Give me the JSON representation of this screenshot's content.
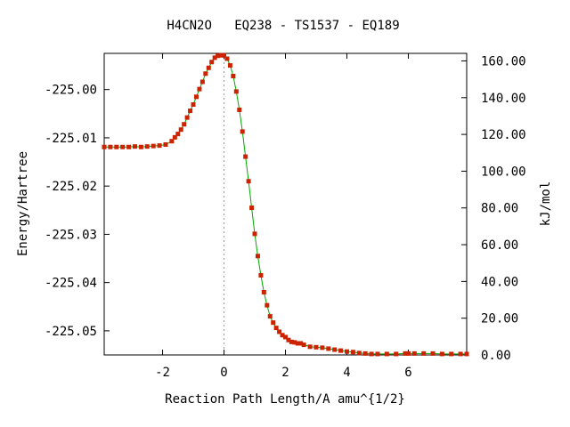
{
  "chart_data": {
    "type": "scatter",
    "title": "H4CN2O   EQ238 - TS1537 - EQ189",
    "xlabel": "Reaction Path Length/A amu^{1/2}",
    "ylabel": "Energy/Hartree",
    "y2label": "kJ/mol",
    "xlim": [
      -3.9,
      7.9
    ],
    "ylim": [
      -225.055,
      -224.9925
    ],
    "y2lim": [
      0,
      164.1
    ],
    "x_ticks": [
      -2,
      0,
      2,
      4,
      6
    ],
    "x_tick_labels": [
      "-2",
      "0",
      "2",
      "4",
      "6"
    ],
    "y_ticks": [
      -225.0,
      -225.01,
      -225.02,
      -225.03,
      -225.04,
      -225.05
    ],
    "y_tick_labels": [
      "-225.00",
      "-225.01",
      "-225.02",
      "-225.03",
      "-225.04",
      "-225.05"
    ],
    "y2_ticks": [
      0,
      20,
      40,
      60,
      80,
      100,
      120,
      140,
      160
    ],
    "y2_tick_labels": [
      "0.00",
      "20.00",
      "40.00",
      "60.00",
      "80.00",
      "100.00",
      "120.00",
      "140.00",
      "160.00"
    ],
    "ts_x": 0,
    "colors": {
      "marker": "#cc2200",
      "line": "#00aa00",
      "ts_line": "#999999"
    },
    "series": [
      {
        "x": [
          -3.9,
          -3.7,
          -3.5,
          -3.3,
          -3.1,
          -2.9,
          -2.7,
          -2.5,
          -2.3,
          -2.1,
          -1.9,
          -1.7,
          -1.6,
          -1.5,
          -1.4,
          -1.3,
          -1.2,
          -1.1,
          -1.0,
          -0.9,
          -0.8,
          -0.7,
          -0.6,
          -0.5,
          -0.4,
          -0.3,
          -0.2,
          -0.1,
          0.0,
          0.1,
          0.2,
          0.3,
          0.4,
          0.5,
          0.6,
          0.7,
          0.8,
          0.9,
          1.0,
          1.1,
          1.2,
          1.3,
          1.4,
          1.5,
          1.6,
          1.7,
          1.8,
          1.9,
          2.0,
          2.1,
          2.2,
          2.3,
          2.4,
          2.5,
          2.6,
          2.8,
          3.0,
          3.2,
          3.4,
          3.6,
          3.8,
          4.0,
          4.2,
          4.4,
          4.6,
          4.8,
          5.0,
          5.3,
          5.6,
          5.9,
          6.0,
          6.2,
          6.5,
          6.8,
          7.1,
          7.4,
          7.7,
          7.9
        ],
        "y": [
          -225.0119,
          -225.0119,
          -225.0119,
          -225.0119,
          -225.0119,
          -225.0118,
          -225.0119,
          -225.0118,
          -225.0117,
          -225.0116,
          -225.0114,
          -225.0107,
          -225.0099,
          -225.0092,
          -225.0083,
          -225.0072,
          -225.0058,
          -225.0044,
          -225.0031,
          -225.0015,
          -224.9999,
          -224.9984,
          -224.9967,
          -224.9955,
          -224.9943,
          -224.9934,
          -224.993,
          -224.9929,
          -224.9929,
          -224.9936,
          -224.995,
          -224.9972,
          -225.0004,
          -225.0042,
          -225.0087,
          -225.0139,
          -225.019,
          -225.0245,
          -225.0299,
          -225.0345,
          -225.0385,
          -225.042,
          -225.0447,
          -225.047,
          -225.0483,
          -225.0494,
          -225.0502,
          -225.0509,
          -225.0513,
          -225.0519,
          -225.0523,
          -225.0524,
          -225.0526,
          -225.0526,
          -225.0529,
          -225.0533,
          -225.0534,
          -225.0535,
          -225.0537,
          -225.0539,
          -225.0541,
          -225.0543,
          -225.0544,
          -225.0546,
          -225.0547,
          -225.0548,
          -225.0548,
          -225.0548,
          -225.0548,
          -225.0547,
          -225.0547,
          -225.0547,
          -225.0547,
          -225.0547,
          -225.0548,
          -225.0548,
          -225.0548,
          -225.0548
        ]
      }
    ]
  }
}
